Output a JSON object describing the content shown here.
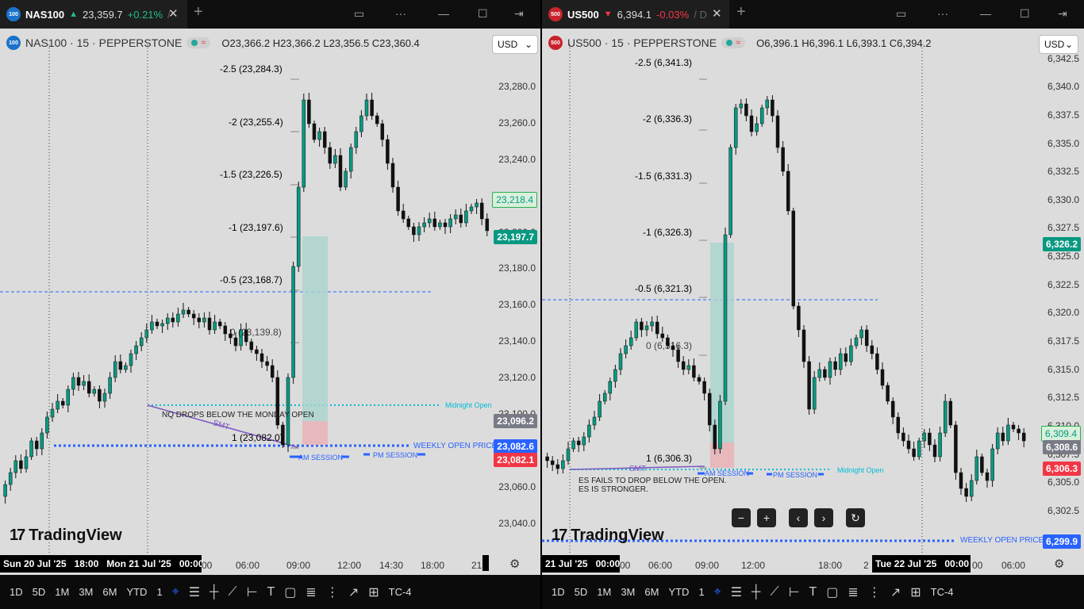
{
  "left": {
    "tab": {
      "badge": "100",
      "symbol": "NAS100",
      "arrow": "▲",
      "price": "23,359.7",
      "change": "+0.21%",
      "tail": "/"
    },
    "symbol_line": {
      "badge": "100",
      "text": "NAS100 · 15 · PEPPERSTONE",
      "ohlc": "O23,366.2  H23,366.2  L23,356.5  C23,360.4"
    },
    "currency": "USD",
    "yaxis": [
      "23,280.0",
      "23,260.0",
      "23,240.0",
      "23,200.0",
      "23,180.0",
      "23,160.0",
      "23,140.0",
      "23,120.0",
      "23,100.0",
      "23,060.0",
      "23,040.0"
    ],
    "price_tags": {
      "green_outline": "23,218.4",
      "teal": "23,197.7",
      "gray": "23,096.2",
      "blue": "23,082.6",
      "red": "23,082.1"
    },
    "fib_levels": [
      {
        "label": "-2.5 (23,284.3)",
        "color": "#f7a21b"
      },
      {
        "label": "-2 (23,255.4)",
        "color": "#f23645"
      },
      {
        "label": "-1.5 (23,226.5)",
        "color": "#f7a21b"
      },
      {
        "label": "-1 (23,197.6)",
        "color": "#787b86"
      },
      {
        "label": "-0.5 (23,168.7)",
        "color": "#089981"
      },
      {
        "label": "0 (23,139.8)",
        "color": "#089981"
      },
      {
        "label": "1 (23,082.0)",
        "color": "#f23645"
      }
    ],
    "annotations": {
      "midnight": "Midnight Open",
      "weekly": "WEEKLY OPEN PRICE",
      "am": "AM SESSION",
      "pm": "PM SESSION",
      "smt": "SMT",
      "note": "NQ DROPS BELOW THE MONDAY OPEN"
    },
    "date_box": [
      "Sun 20 Jul '25",
      "18:00",
      "Mon 21 Jul '25",
      "00:00"
    ],
    "time_ticks": [
      "00",
      "06:00",
      "09:00",
      "12:00",
      "14:30",
      "18:00",
      "21"
    ],
    "toolbar": [
      "1D",
      "5D",
      "1M",
      "3M",
      "6M",
      "YTD",
      "1",
      "TC-4"
    ],
    "logo": "TradingView"
  },
  "right": {
    "tab": {
      "badge": "500",
      "symbol": "US500",
      "arrow": "▼",
      "price": "6,394.1",
      "change": "-0.03%",
      "tail": "/ D"
    },
    "symbol_line": {
      "badge": "500",
      "text": "US500 · 15 · PEPPERSTONE",
      "ohlc": "O6,396.1  H6,396.1  L6,393.1  C6,394.2"
    },
    "currency": "USD",
    "yaxis": [
      "6,342.5",
      "6,340.0",
      "6,337.5",
      "6,335.0",
      "6,332.5",
      "6,330.0",
      "6,327.5",
      "6,325.0",
      "6,322.5",
      "6,320.0",
      "6,317.5",
      "6,315.0",
      "6,312.5",
      "6,310.0",
      "6,307.5",
      "6,305.0",
      "6,302.5"
    ],
    "price_tags": {
      "gray_top": "6,326.2",
      "green_outline": "6,309.4",
      "gray": "6,308.6",
      "red": "6,306.3",
      "blue": "6,299.9"
    },
    "fib_levels": [
      {
        "label": "-2.5 (6,341.3)",
        "color": "#f7a21b"
      },
      {
        "label": "-2 (6,336.3)",
        "color": "#f23645"
      },
      {
        "label": "-1.5 (6,331.3)",
        "color": "#f7a21b"
      },
      {
        "label": "-1 (6,326.3)",
        "color": "#787b86"
      },
      {
        "label": "-0.5 (6,321.3)",
        "color": "#089981"
      },
      {
        "label": "0 (6,316.3)",
        "color": "#089981"
      },
      {
        "label": "1 (6,306.3)",
        "color": "#f23645"
      }
    ],
    "annotations": {
      "midnight": "Midnight Open",
      "weekly": "WEEKLY OPEN PRICE",
      "am": "AM SESSION",
      "pm": "PM SESSION",
      "smt": "SMT",
      "note1": "ES FAILS TO DROP BELOW THE OPEN.",
      "note2": "ES IS STRONGER."
    },
    "date_box_left": [
      "21 Jul '25",
      "00:00"
    ],
    "date_box_right": [
      "Tue 22 Jul '25",
      "00:00"
    ],
    "time_ticks": [
      "00",
      "06:00",
      "09:00",
      "12:00",
      "18:00",
      "2",
      "00",
      "06:00"
    ],
    "toolbar": [
      "1D",
      "5D",
      "1M",
      "3M",
      "6M",
      "YTD",
      "1",
      "TC-4"
    ],
    "logo": "TradingView",
    "nav": [
      "−",
      "+",
      "‹",
      "›",
      "↻"
    ]
  },
  "colors": {
    "up": "#089981",
    "down": "#111111",
    "accent": "#2962ff",
    "fill_green": "#a9d5cd",
    "fill_red": "#e8b4b8",
    "midnight": "#00bcd4"
  },
  "icons": [
    "layout-icon",
    "more-icon",
    "minimize-icon",
    "maximize-icon",
    "popout-icon",
    "close-icon",
    "plus-icon",
    "settings-icon",
    "crosshair-icon",
    "trendline-icon",
    "text-icon"
  ]
}
